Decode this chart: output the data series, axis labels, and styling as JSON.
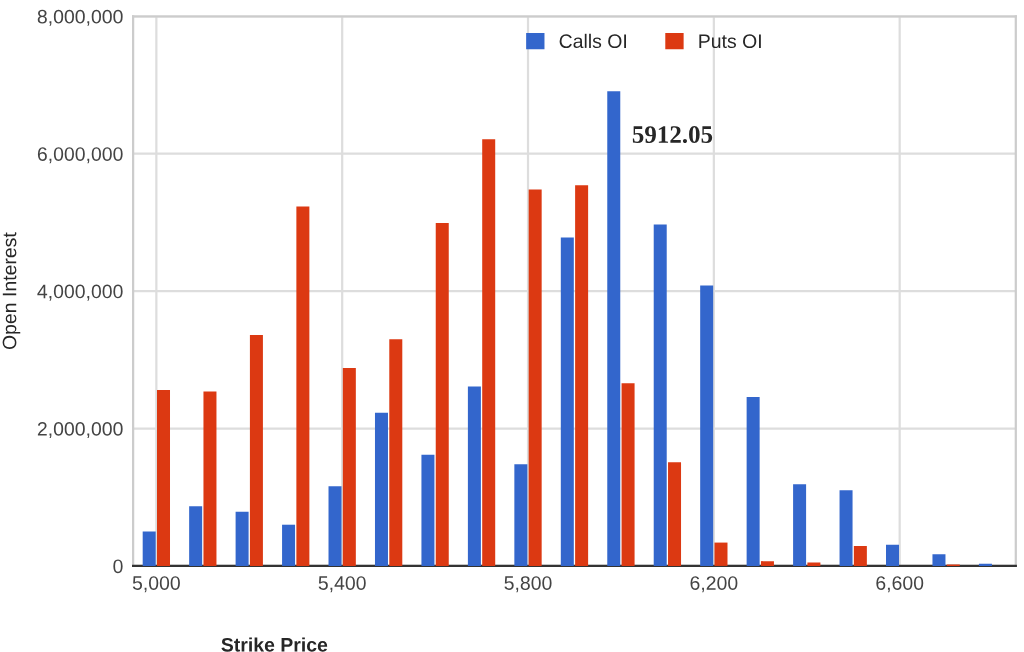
{
  "chart_data": {
    "type": "bar",
    "xlabel": "Strike Price",
    "ylabel": "Open Interest",
    "x": [
      5000,
      5100,
      5200,
      5300,
      5400,
      5500,
      5600,
      5700,
      5800,
      5900,
      6000,
      6100,
      6200,
      6300,
      6400,
      6500,
      6600,
      6700,
      6800
    ],
    "series": [
      {
        "name": "Calls OI",
        "color": "#3366cc",
        "values": [
          500000,
          870000,
          790000,
          600000,
          1160000,
          2230000,
          1620000,
          2610000,
          1480000,
          4780000,
          6910000,
          4970000,
          4080000,
          2460000,
          1190000,
          1100000,
          310000,
          170000,
          30000
        ]
      },
      {
        "name": "Puts OI",
        "color": "#dc3912",
        "values": [
          2560000,
          2540000,
          3360000,
          5230000,
          2880000,
          3300000,
          4990000,
          6210000,
          5480000,
          5540000,
          2660000,
          1510000,
          340000,
          70000,
          50000,
          290000,
          null,
          20000,
          null
        ]
      }
    ],
    "xlim": [
      4950,
      6850
    ],
    "xticks": [
      {
        "value": 5000,
        "label": "5,000"
      },
      {
        "value": 5400,
        "label": "5,400"
      },
      {
        "value": 5800,
        "label": "5,800"
      },
      {
        "value": 6200,
        "label": "6,200"
      },
      {
        "value": 6600,
        "label": "6,600"
      }
    ],
    "ylim": [
      0,
      8000000
    ],
    "yticks": [
      {
        "value": 0,
        "label": "0"
      },
      {
        "value": 2000000,
        "label": "2,000,000"
      },
      {
        "value": 4000000,
        "label": "4,000,000"
      },
      {
        "value": 6000000,
        "label": "6,000,000"
      },
      {
        "value": 8000000,
        "label": "8,000,000"
      }
    ],
    "grid": true,
    "legend": "top",
    "annotations": [
      "5912.05"
    ]
  }
}
